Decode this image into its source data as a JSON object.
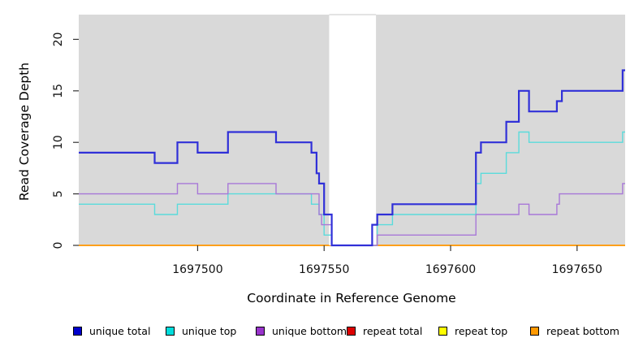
{
  "chart_data": {
    "type": "line",
    "step": "hv",
    "title": "",
    "xlabel": "Coordinate in Reference Genome",
    "ylabel": "Read Coverage Depth",
    "xlim": [
      1697453,
      1697669
    ],
    "ylim": [
      0,
      22.4
    ],
    "x_ticks": [
      1697500,
      1697550,
      1697600,
      1697650
    ],
    "y_ticks": [
      0,
      5,
      10,
      15,
      20
    ],
    "panel_bg": "#d9d9d9",
    "gap_region": {
      "x_start": 1697552,
      "x_end": 1697570.5,
      "color": "#ffffff"
    },
    "series": [
      {
        "name": "repeat total",
        "color": "#dd0000",
        "width": 1.4,
        "steps": [
          [
            1697453,
            0
          ]
        ]
      },
      {
        "name": "repeat top",
        "color": "#f0f000",
        "width": 1.4,
        "steps": [
          [
            1697453,
            0
          ]
        ]
      },
      {
        "name": "repeat bottom",
        "color": "#ff9d17",
        "width": 1.7,
        "steps": [
          [
            1697453,
            0
          ]
        ]
      },
      {
        "name": "unique top",
        "color": "#5adbdb",
        "width": 1.4,
        "steps": [
          [
            1697453,
            4
          ],
          [
            1697483,
            3
          ],
          [
            1697492,
            4
          ],
          [
            1697512,
            5
          ],
          [
            1697545,
            4
          ],
          [
            1697548,
            3
          ],
          [
            1697550,
            1
          ],
          [
            1697553,
            0
          ],
          [
            1697571,
            2
          ],
          [
            1697577,
            3
          ],
          [
            1697610,
            6
          ],
          [
            1697612,
            7
          ],
          [
            1697622,
            9
          ],
          [
            1697627,
            11
          ],
          [
            1697631,
            10
          ],
          [
            1697668,
            11
          ]
        ]
      },
      {
        "name": "unique bottom",
        "color": "#a878d8",
        "width": 1.4,
        "steps": [
          [
            1697453,
            5
          ],
          [
            1697492,
            6
          ],
          [
            1697500,
            5
          ],
          [
            1697512,
            6
          ],
          [
            1697531,
            5
          ],
          [
            1697548,
            3
          ],
          [
            1697549,
            2
          ],
          [
            1697553,
            0
          ],
          [
            1697571,
            1
          ],
          [
            1697610,
            3
          ],
          [
            1697627,
            4
          ],
          [
            1697631,
            3
          ],
          [
            1697642,
            4
          ],
          [
            1697643,
            5
          ],
          [
            1697668,
            6
          ]
        ]
      },
      {
        "name": "unique total",
        "color": "#3030d8",
        "width": 2.2,
        "steps": [
          [
            1697453,
            9
          ],
          [
            1697483,
            8
          ],
          [
            1697492,
            10
          ],
          [
            1697500,
            9
          ],
          [
            1697512,
            11
          ],
          [
            1697531,
            10
          ],
          [
            1697545,
            9
          ],
          [
            1697547,
            7
          ],
          [
            1697548,
            6
          ],
          [
            1697550,
            3
          ],
          [
            1697553,
            0
          ],
          [
            1697569,
            2
          ],
          [
            1697571,
            3
          ],
          [
            1697577,
            4
          ],
          [
            1697610,
            9
          ],
          [
            1697612,
            10
          ],
          [
            1697622,
            12
          ],
          [
            1697627,
            15
          ],
          [
            1697631,
            13
          ],
          [
            1697642,
            14
          ],
          [
            1697644,
            15
          ],
          [
            1697668,
            17
          ]
        ]
      }
    ]
  },
  "legend": {
    "items": [
      {
        "label": "unique total",
        "color": "#0000cc"
      },
      {
        "label": "unique top",
        "color": "#00dddd"
      },
      {
        "label": "unique bottom",
        "color": "#9933cc"
      },
      {
        "label": "repeat total",
        "color": "#dd0000"
      },
      {
        "label": "repeat top",
        "color": "#ffff00"
      },
      {
        "label": "repeat bottom",
        "color": "#ff9900"
      }
    ]
  }
}
